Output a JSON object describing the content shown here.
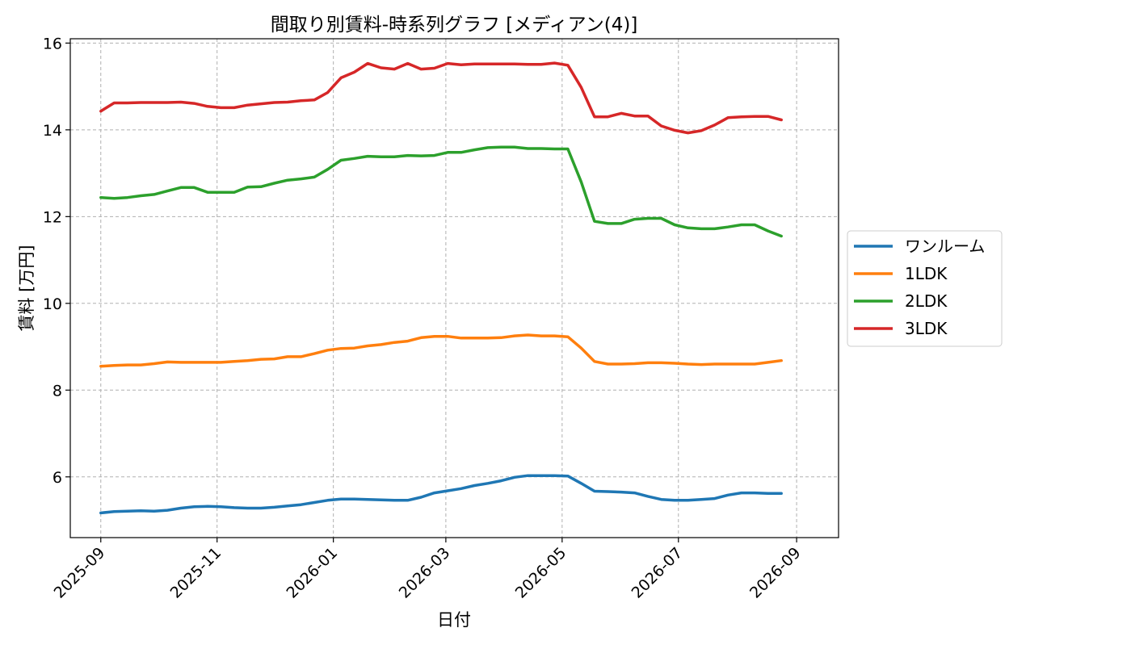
{
  "chart_data": {
    "type": "line",
    "title": "間取り別賃料-時系列グラフ [メディアン(4)]",
    "xlabel": "日付",
    "ylabel": "賃料 [万円]",
    "xlim": [
      "2025-08-16",
      "2026-09-23"
    ],
    "ylim": [
      4.6,
      16.1
    ],
    "grid": true,
    "legend_position": "right",
    "x_ticks": [
      "2025-09",
      "2025-11",
      "2026-01",
      "2026-03",
      "2026-05",
      "2026-07",
      "2026-09"
    ],
    "y_ticks": [
      6,
      8,
      10,
      12,
      14,
      16
    ],
    "x": [
      "2025-09-01",
      "2025-09-08",
      "2025-09-15",
      "2025-09-22",
      "2025-09-29",
      "2025-10-06",
      "2025-10-13",
      "2025-10-20",
      "2025-10-27",
      "2025-11-03",
      "2025-11-10",
      "2025-11-17",
      "2025-11-24",
      "2025-12-01",
      "2025-12-08",
      "2025-12-15",
      "2025-12-22",
      "2025-12-29",
      "2026-01-05",
      "2026-01-12",
      "2026-01-19",
      "2026-01-26",
      "2026-02-02",
      "2026-02-09",
      "2026-02-16",
      "2026-02-23",
      "2026-03-02",
      "2026-03-09",
      "2026-03-16",
      "2026-03-23",
      "2026-03-30",
      "2026-04-06",
      "2026-04-13",
      "2026-04-20",
      "2026-04-27",
      "2026-05-04",
      "2026-05-11",
      "2026-05-18",
      "2026-05-25",
      "2026-06-01",
      "2026-06-08",
      "2026-06-15",
      "2026-06-22",
      "2026-06-29",
      "2026-07-06",
      "2026-07-13",
      "2026-07-20",
      "2026-07-27",
      "2026-08-03",
      "2026-08-10",
      "2026-08-17",
      "2026-08-24"
    ],
    "series": [
      {
        "name": "ワンルーム",
        "color": "#1f77b4",
        "values": [
          5.17,
          5.2,
          5.21,
          5.22,
          5.21,
          5.23,
          5.28,
          5.31,
          5.32,
          5.31,
          5.29,
          5.28,
          5.28,
          5.3,
          5.33,
          5.36,
          5.41,
          5.46,
          5.49,
          5.49,
          5.48,
          5.47,
          5.46,
          5.46,
          5.53,
          5.63,
          5.68,
          5.73,
          5.8,
          5.85,
          5.91,
          5.99,
          6.03,
          6.03,
          6.03,
          6.02,
          5.85,
          5.67,
          5.66,
          5.65,
          5.63,
          5.55,
          5.48,
          5.46,
          5.46,
          5.48,
          5.5,
          5.58,
          5.63,
          5.63,
          5.62,
          5.62
        ]
      },
      {
        "name": "1LDK",
        "color": "#ff7f0e",
        "values": [
          8.55,
          8.57,
          8.58,
          8.58,
          8.61,
          8.65,
          8.64,
          8.64,
          8.64,
          8.64,
          8.66,
          8.68,
          8.71,
          8.72,
          8.77,
          8.77,
          8.84,
          8.92,
          8.96,
          8.97,
          9.02,
          9.05,
          9.1,
          9.13,
          9.21,
          9.24,
          9.24,
          9.2,
          9.2,
          9.2,
          9.21,
          9.25,
          9.27,
          9.25,
          9.25,
          9.23,
          8.97,
          8.66,
          8.6,
          8.6,
          8.61,
          8.63,
          8.63,
          8.62,
          8.6,
          8.59,
          8.6,
          8.6,
          8.6,
          8.6,
          8.64,
          8.68
        ]
      },
      {
        "name": "2LDK",
        "color": "#2ca02c",
        "values": [
          12.44,
          12.42,
          12.44,
          12.48,
          12.51,
          12.59,
          12.67,
          12.67,
          12.56,
          12.56,
          12.56,
          12.68,
          12.69,
          12.77,
          12.84,
          12.87,
          12.91,
          13.09,
          13.3,
          13.34,
          13.39,
          13.38,
          13.38,
          13.41,
          13.4,
          13.41,
          13.48,
          13.48,
          13.54,
          13.59,
          13.6,
          13.6,
          13.57,
          13.57,
          13.56,
          13.56,
          12.8,
          11.89,
          11.84,
          11.84,
          11.94,
          11.96,
          11.96,
          11.81,
          11.74,
          11.72,
          11.72,
          11.76,
          11.81,
          11.81,
          11.67,
          11.55
        ]
      },
      {
        "name": "3LDK",
        "color": "#d62728",
        "values": [
          14.43,
          14.62,
          14.62,
          14.63,
          14.63,
          14.63,
          14.64,
          14.61,
          14.54,
          14.51,
          14.51,
          14.57,
          14.6,
          14.63,
          14.64,
          14.67,
          14.69,
          14.86,
          15.2,
          15.33,
          15.53,
          15.43,
          15.4,
          15.53,
          15.4,
          15.42,
          15.53,
          15.5,
          15.52,
          15.52,
          15.52,
          15.52,
          15.51,
          15.51,
          15.54,
          15.49,
          14.98,
          14.3,
          14.3,
          14.38,
          14.32,
          14.32,
          14.09,
          13.99,
          13.93,
          13.98,
          14.11,
          14.28,
          14.3,
          14.31,
          14.31,
          14.23
        ]
      }
    ]
  }
}
